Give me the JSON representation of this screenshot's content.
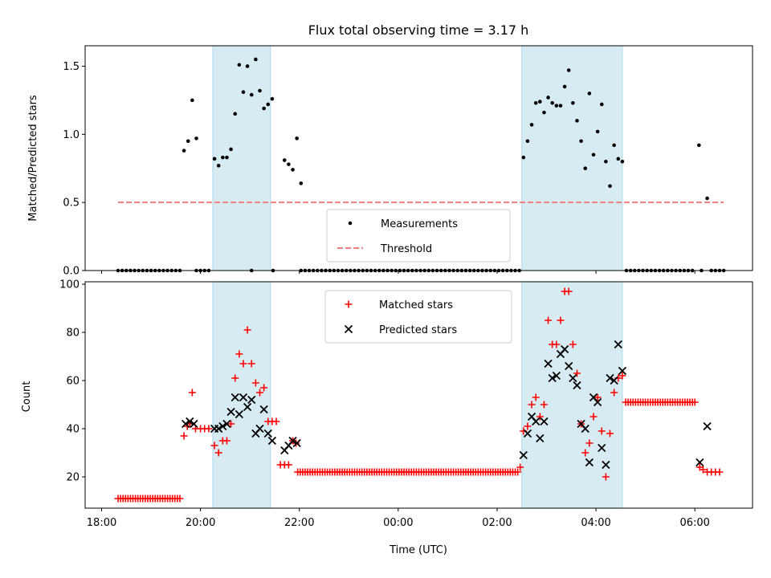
{
  "figure": {
    "title": "Flux total observing time = 3.17 h",
    "xlabel": "Time (UTC)"
  },
  "colors": {
    "shade": "#add8e6",
    "threshold": "#f08080",
    "matched": "#ff0000",
    "predicted": "#000000",
    "measurements": "#000000"
  },
  "chart_data": [
    {
      "type": "scatter",
      "ylabel": "Matched/Predicted stars",
      "xlim": [
        "17:40",
        "07:10"
      ],
      "ylim": [
        0,
        1.65
      ],
      "yticks": [
        "0.0",
        "0.5",
        "1.0",
        "1.5"
      ],
      "shaded_intervals": [
        [
          "20:15",
          "21:25"
        ],
        [
          "02:30",
          "04:32"
        ]
      ],
      "legend": {
        "position": "lower center",
        "entries": [
          "Measurements",
          "Threshold"
        ]
      },
      "threshold": {
        "name": "Threshold",
        "value": 0.5,
        "x_start": "18:20",
        "x_end": "06:35"
      },
      "zero_runs": [
        {
          "start": "18:20",
          "end": "19:37",
          "step_min": 5
        },
        {
          "start": "19:55",
          "end": "20:10",
          "step_min": 5
        },
        {
          "start": "21:02",
          "end": "21:02",
          "step_min": 5
        },
        {
          "start": "21:28",
          "end": "21:28",
          "step_min": 5
        },
        {
          "start": "22:02",
          "end": "02:29",
          "step_min": 5
        },
        {
          "start": "04:37",
          "end": "06:00",
          "step_min": 5
        },
        {
          "start": "06:08",
          "end": "06:08",
          "step_min": 5
        },
        {
          "start": "06:20",
          "end": "06:35",
          "step_min": 5
        }
      ],
      "series": [
        {
          "name": "Measurements",
          "points": [
            [
              "19:40",
              0.88
            ],
            [
              "19:45",
              0.95
            ],
            [
              "19:50",
              1.25
            ],
            [
              "19:55",
              0.97
            ],
            [
              "20:17",
              0.82
            ],
            [
              "20:22",
              0.77
            ],
            [
              "20:27",
              0.83
            ],
            [
              "20:32",
              0.83
            ],
            [
              "20:37",
              0.89
            ],
            [
              "20:42",
              1.15
            ],
            [
              "20:47",
              1.51
            ],
            [
              "20:52",
              1.31
            ],
            [
              "20:57",
              1.5
            ],
            [
              "21:02",
              1.29
            ],
            [
              "21:07",
              1.55
            ],
            [
              "21:12",
              1.32
            ],
            [
              "21:17",
              1.19
            ],
            [
              "21:22",
              1.22
            ],
            [
              "21:27",
              1.26
            ],
            [
              "21:42",
              0.81
            ],
            [
              "21:47",
              0.78
            ],
            [
              "21:52",
              0.74
            ],
            [
              "21:57",
              0.97
            ],
            [
              "22:02",
              0.64
            ],
            [
              "02:32",
              0.83
            ],
            [
              "02:37",
              0.95
            ],
            [
              "02:42",
              1.07
            ],
            [
              "02:47",
              1.23
            ],
            [
              "02:52",
              1.24
            ],
            [
              "02:57",
              1.16
            ],
            [
              "03:02",
              1.27
            ],
            [
              "03:07",
              1.23
            ],
            [
              "03:12",
              1.21
            ],
            [
              "03:17",
              1.21
            ],
            [
              "03:22",
              1.35
            ],
            [
              "03:27",
              1.47
            ],
            [
              "03:32",
              1.23
            ],
            [
              "03:37",
              1.1
            ],
            [
              "03:42",
              0.95
            ],
            [
              "03:47",
              0.75
            ],
            [
              "03:52",
              1.3
            ],
            [
              "03:57",
              0.85
            ],
            [
              "04:02",
              1.02
            ],
            [
              "04:07",
              1.22
            ],
            [
              "04:12",
              0.8
            ],
            [
              "04:17",
              0.62
            ],
            [
              "04:22",
              0.92
            ],
            [
              "04:27",
              0.82
            ],
            [
              "04:32",
              0.8
            ],
            [
              "06:05",
              0.92
            ],
            [
              "06:15",
              0.53
            ]
          ]
        }
      ]
    },
    {
      "type": "scatter",
      "ylabel": "Count",
      "xlabel": "Time (UTC)",
      "xlim": [
        "17:40",
        "07:10"
      ],
      "ylim": [
        7,
        101
      ],
      "yticks": [
        "20",
        "40",
        "60",
        "80",
        "100"
      ],
      "xticks": [
        "18:00",
        "20:00",
        "22:00",
        "00:00",
        "02:00",
        "04:00",
        "06:00"
      ],
      "shaded_intervals": [
        [
          "20:15",
          "21:25"
        ],
        [
          "02:30",
          "04:32"
        ]
      ],
      "legend": {
        "position": "upper center",
        "entries": [
          "Matched stars",
          "Predicted stars"
        ]
      },
      "constant_runs": [
        {
          "series": "Matched stars",
          "start": "18:20",
          "end": "19:37",
          "step_min": 3,
          "value": 11
        },
        {
          "series": "Matched stars",
          "start": "21:58",
          "end": "02:25",
          "step_min": 3,
          "value": 22
        },
        {
          "series": "Matched stars",
          "start": "04:36",
          "end": "06:02",
          "step_min": 3,
          "value": 51
        }
      ],
      "series": [
        {
          "name": "Matched stars",
          "points": [
            [
              "19:40",
              37
            ],
            [
              "19:44",
              41
            ],
            [
              "19:47",
              42
            ],
            [
              "19:50",
              55
            ],
            [
              "19:54",
              40
            ],
            [
              "20:00",
              40
            ],
            [
              "20:05",
              40
            ],
            [
              "20:10",
              40
            ],
            [
              "20:17",
              33
            ],
            [
              "20:22",
              30
            ],
            [
              "20:27",
              35
            ],
            [
              "20:32",
              35
            ],
            [
              "20:37",
              42
            ],
            [
              "20:42",
              61
            ],
            [
              "20:47",
              71
            ],
            [
              "20:52",
              67
            ],
            [
              "20:57",
              81
            ],
            [
              "21:02",
              67
            ],
            [
              "21:07",
              59
            ],
            [
              "21:12",
              55
            ],
            [
              "21:17",
              57
            ],
            [
              "21:22",
              43
            ],
            [
              "21:27",
              43
            ],
            [
              "21:32",
              43
            ],
            [
              "21:37",
              25
            ],
            [
              "21:42",
              25
            ],
            [
              "21:47",
              25
            ],
            [
              "21:52",
              35
            ],
            [
              "21:56",
              34
            ],
            [
              "02:28",
              24
            ],
            [
              "02:32",
              39
            ],
            [
              "02:37",
              41
            ],
            [
              "02:42",
              50
            ],
            [
              "02:47",
              53
            ],
            [
              "02:52",
              45
            ],
            [
              "02:57",
              50
            ],
            [
              "03:02",
              85
            ],
            [
              "03:07",
              75
            ],
            [
              "03:12",
              75
            ],
            [
              "03:17",
              85
            ],
            [
              "03:22",
              97
            ],
            [
              "03:27",
              97
            ],
            [
              "03:32",
              75
            ],
            [
              "03:37",
              63
            ],
            [
              "03:42",
              42
            ],
            [
              "03:47",
              30
            ],
            [
              "03:52",
              34
            ],
            [
              "03:57",
              45
            ],
            [
              "04:02",
              53
            ],
            [
              "04:07",
              39
            ],
            [
              "04:12",
              20
            ],
            [
              "04:17",
              38
            ],
            [
              "04:22",
              55
            ],
            [
              "04:27",
              61
            ],
            [
              "04:32",
              62
            ],
            [
              "06:06",
              24
            ],
            [
              "06:10",
              23
            ],
            [
              "06:15",
              22
            ],
            [
              "06:20",
              22
            ],
            [
              "06:25",
              22
            ],
            [
              "06:30",
              22
            ]
          ]
        },
        {
          "name": "Predicted stars",
          "points": [
            [
              "19:42",
              42
            ],
            [
              "19:47",
              43
            ],
            [
              "19:52",
              42
            ],
            [
              "20:17",
              40
            ],
            [
              "20:22",
              40
            ],
            [
              "20:27",
              41
            ],
            [
              "20:32",
              42
            ],
            [
              "20:37",
              47
            ],
            [
              "20:42",
              53
            ],
            [
              "20:47",
              46
            ],
            [
              "20:52",
              53
            ],
            [
              "20:57",
              49
            ],
            [
              "21:02",
              52
            ],
            [
              "21:07",
              38
            ],
            [
              "21:12",
              40
            ],
            [
              "21:17",
              48
            ],
            [
              "21:22",
              38
            ],
            [
              "21:27",
              35
            ],
            [
              "21:42",
              31
            ],
            [
              "21:47",
              33
            ],
            [
              "21:52",
              35
            ],
            [
              "21:57",
              34
            ],
            [
              "02:32",
              29
            ],
            [
              "02:37",
              38
            ],
            [
              "02:42",
              45
            ],
            [
              "02:47",
              43
            ],
            [
              "02:52",
              36
            ],
            [
              "02:57",
              43
            ],
            [
              "03:02",
              67
            ],
            [
              "03:07",
              61
            ],
            [
              "03:12",
              62
            ],
            [
              "03:17",
              71
            ],
            [
              "03:22",
              73
            ],
            [
              "03:27",
              66
            ],
            [
              "03:32",
              61
            ],
            [
              "03:37",
              58
            ],
            [
              "03:42",
              42
            ],
            [
              "03:47",
              40
            ],
            [
              "03:52",
              26
            ],
            [
              "03:57",
              53
            ],
            [
              "04:02",
              51
            ],
            [
              "04:07",
              32
            ],
            [
              "04:12",
              25
            ],
            [
              "04:17",
              61
            ],
            [
              "04:22",
              60
            ],
            [
              "04:27",
              75
            ],
            [
              "04:32",
              64
            ],
            [
              "06:06",
              26
            ],
            [
              "06:15",
              41
            ]
          ]
        }
      ]
    }
  ]
}
